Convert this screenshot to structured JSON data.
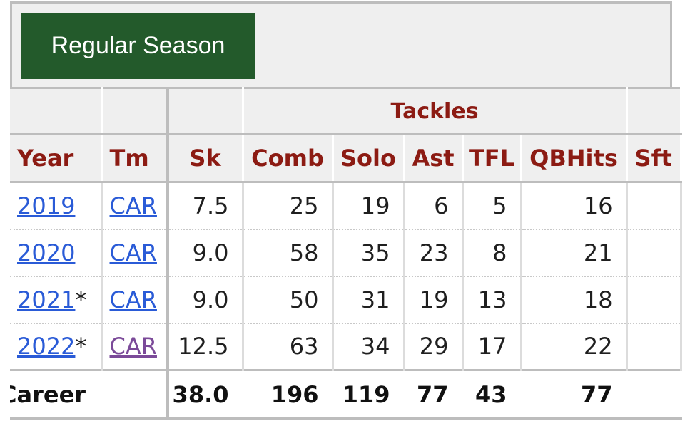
{
  "tabs": [
    {
      "label": "Regular Season",
      "active": true
    }
  ],
  "table": {
    "group_header": {
      "label": "Tackles"
    },
    "columns": [
      "Year",
      "Tm",
      "Sk",
      "Comb",
      "Solo",
      "Ast",
      "TFL",
      "QBHits",
      "Sft"
    ],
    "rows": [
      {
        "year": "2019",
        "star": "",
        "team": "CAR",
        "sk": "7.5",
        "comb": "25",
        "solo": "19",
        "ast": "6",
        "tfl": "5",
        "qbhits": "16",
        "sft": ""
      },
      {
        "year": "2020",
        "star": "",
        "team": "CAR",
        "sk": "9.0",
        "comb": "58",
        "solo": "35",
        "ast": "23",
        "tfl": "8",
        "qbhits": "21",
        "sft": ""
      },
      {
        "year": "2021",
        "star": "*",
        "team": "CAR",
        "sk": "9.0",
        "comb": "50",
        "solo": "31",
        "ast": "19",
        "tfl": "13",
        "qbhits": "18",
        "sft": ""
      },
      {
        "year": "2022",
        "star": "*",
        "team": "CAR",
        "sk": "12.5",
        "comb": "63",
        "solo": "34",
        "ast": "29",
        "tfl": "17",
        "qbhits": "22",
        "sft": ""
      }
    ],
    "footer": {
      "label": "Career",
      "team": "",
      "sk": "38.0",
      "comb": "196",
      "solo": "119",
      "ast": "77",
      "tfl": "43",
      "qbhits": "77",
      "sft": ""
    }
  },
  "colors": {
    "header_text": "#8c1b13",
    "tab_bg": "#235a2b",
    "link": "#2a5bd7",
    "visited_link": "#7b4a99"
  }
}
